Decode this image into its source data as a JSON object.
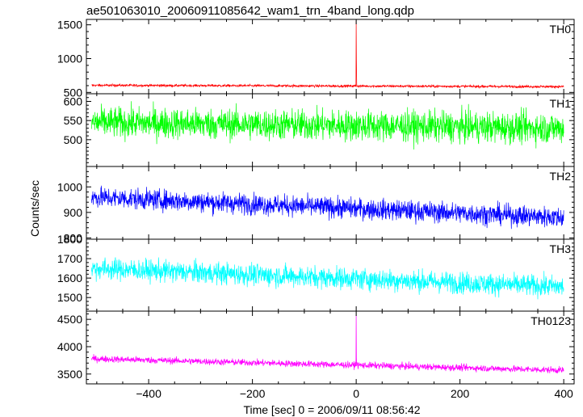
{
  "title": "ae501063010_20060911085642_wam1_trn_4band_long.qdp",
  "ylabel": "Counts/sec",
  "xlabel": "Time [sec] 0 = 2006/09/11 08:56:42",
  "chart_data": [
    {
      "type": "line",
      "series": [
        {
          "name": "TH0",
          "color": "#ff0000",
          "start_x": -510,
          "end_x": 400,
          "step": 0.5,
          "base_start": 605,
          "base_end": 585,
          "noise": 18,
          "spike": {
            "x": 0,
            "y": 1560
          }
        }
      ],
      "ylim": [
        480,
        1580
      ],
      "yticks": [
        500,
        1000,
        1500
      ],
      "yticklabels": [
        "500",
        "1000",
        "1500"
      ],
      "xlim": [
        -520,
        420
      ],
      "xticks": [
        -400,
        -200,
        0,
        200,
        400
      ],
      "xticklabels": [
        "",
        "",
        "",
        "",
        ""
      ]
    },
    {
      "type": "line",
      "series": [
        {
          "name": "TH1",
          "color": "#00ff00",
          "start_x": -510,
          "end_x": 400,
          "step": 0.5,
          "base_start": 545,
          "base_end": 530,
          "noise": 40
        }
      ],
      "ylim": [
        430,
        620
      ],
      "yticks": [
        500,
        550,
        600
      ],
      "yticklabels": [
        "500",
        "550",
        "600"
      ],
      "xlim": [
        -520,
        420
      ],
      "xticks": [
        -400,
        -200,
        0,
        200,
        400
      ],
      "xticklabels": [
        "",
        "",
        "",
        "",
        ""
      ]
    },
    {
      "type": "line",
      "series": [
        {
          "name": "TH2",
          "color": "#0000ff",
          "start_x": -510,
          "end_x": 400,
          "step": 0.5,
          "base_start": 960,
          "base_end": 880,
          "noise": 40
        }
      ],
      "ylim": [
        795,
        1080
      ],
      "yticks": [
        800,
        900,
        1000
      ],
      "yticklabels": [
        "800",
        "900",
        "1000"
      ],
      "xlim": [
        -520,
        420
      ],
      "xticks": [
        -400,
        -200,
        0,
        200,
        400
      ],
      "xticklabels": [
        "",
        "",
        "",
        "",
        ""
      ]
    },
    {
      "type": "line",
      "series": [
        {
          "name": "TH3",
          "color": "#00ffff",
          "start_x": -510,
          "end_x": 400,
          "step": 0.5,
          "base_start": 1650,
          "base_end": 1555,
          "noise": 55
        }
      ],
      "ylim": [
        1430,
        1800
      ],
      "yticks": [
        1500,
        1600,
        1700,
        1800
      ],
      "yticklabels": [
        "1500",
        "1600",
        "1700",
        "1800"
      ],
      "xlim": [
        -520,
        420
      ],
      "xticks": [
        -400,
        -200,
        0,
        200,
        400
      ],
      "xticklabels": [
        "",
        "",
        "",
        "",
        ""
      ]
    },
    {
      "type": "line",
      "series": [
        {
          "name": "TH0123",
          "color": "#ff00ff",
          "start_x": -510,
          "end_x": 400,
          "step": 0.5,
          "base_start": 3780,
          "base_end": 3570,
          "noise": 60,
          "spike": {
            "x": 0,
            "y": 4580
          }
        }
      ],
      "ylim": [
        3320,
        4650
      ],
      "yticks": [
        3500,
        4000,
        4500
      ],
      "yticklabels": [
        "3500",
        "4000",
        "4500"
      ],
      "xlim": [
        -520,
        420
      ],
      "xticks": [
        -400,
        -200,
        0,
        200,
        400
      ],
      "xticklabels": [
        "−400",
        "−200",
        "0",
        "200",
        "400"
      ]
    }
  ]
}
